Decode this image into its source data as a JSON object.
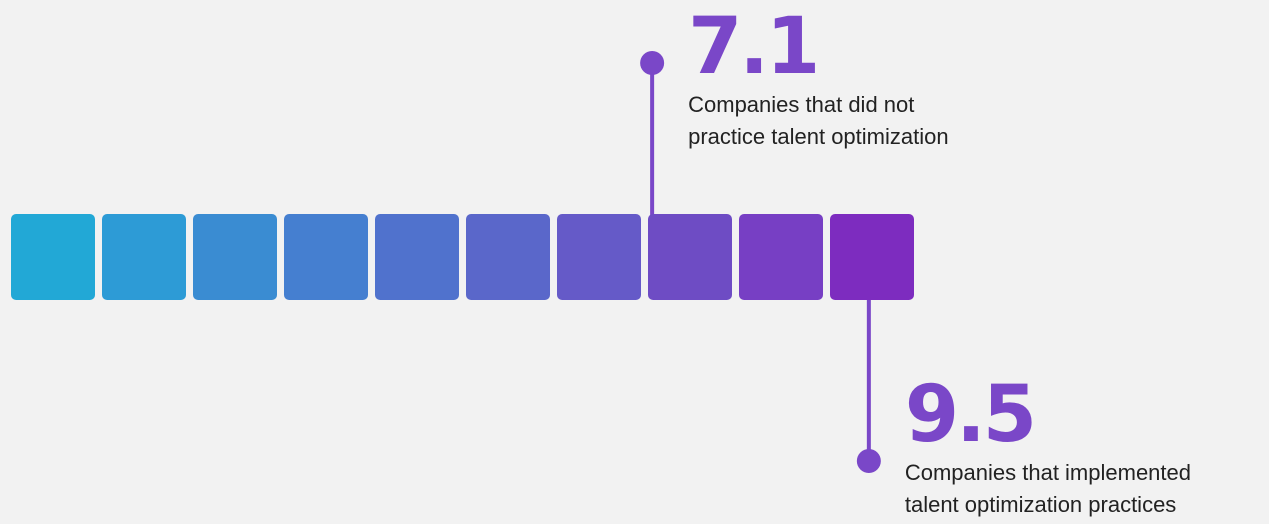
{
  "chart_data": {
    "type": "scale",
    "scale_min": 0,
    "scale_max": 10,
    "segments": 10,
    "segment_colors": [
      "#22a8d6",
      "#2d9bd6",
      "#3a8cd2",
      "#457fd0",
      "#5072cd",
      "#5a67ca",
      "#655ac8",
      "#6e4cc4",
      "#773fc4",
      "#7d2cbf"
    ],
    "markers": [
      {
        "value": 7.1,
        "label": "7.1",
        "description_lines": [
          "Companies that did not",
          "practice talent optimization"
        ],
        "position": "above",
        "color": "#7a47c8"
      },
      {
        "value": 9.5,
        "label": "9.5",
        "description_lines": [
          "Companies that implemented",
          "talent optimization practices"
        ],
        "position": "below",
        "color": "#7a47c8"
      }
    ]
  }
}
